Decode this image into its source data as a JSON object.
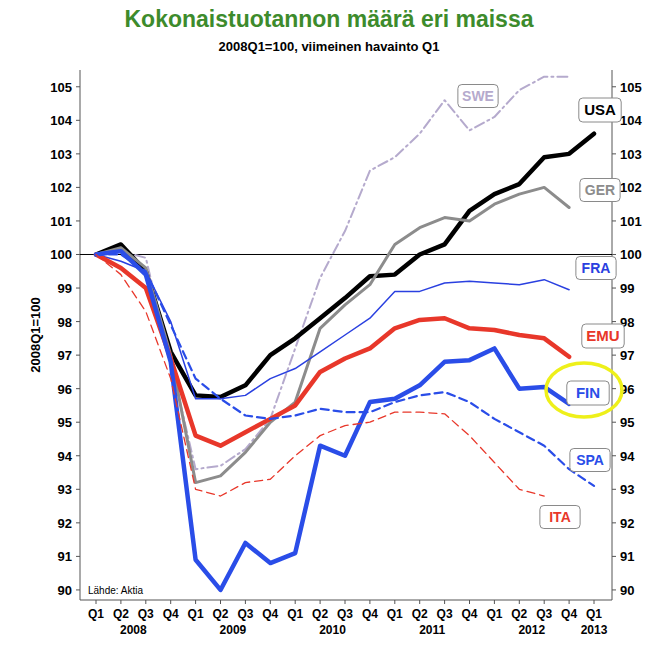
{
  "chart_data": {
    "type": "line",
    "title": "Kokonaistuotannon määrä eri maissa",
    "subtitle": "2008Q1=100, viimeinen havainto Q1",
    "y_label": "2008Q1=100",
    "source": "Lähde: Aktia",
    "categories": [
      "Q1",
      "Q2",
      "Q3",
      "Q4",
      "Q1",
      "Q2",
      "Q3",
      "Q4",
      "Q1",
      "Q2",
      "Q3",
      "Q4",
      "Q1",
      "Q2",
      "Q3",
      "Q4",
      "Q1",
      "Q2",
      "Q3",
      "Q4",
      "Q1"
    ],
    "years": [
      "2008",
      "2009",
      "2010",
      "2011",
      "2012",
      "2013"
    ],
    "ylim": [
      89.7,
      105.5
    ],
    "yticks": [
      90,
      91,
      92,
      93,
      94,
      95,
      96,
      97,
      98,
      99,
      100,
      101,
      102,
      103,
      104,
      105
    ],
    "series": [
      {
        "name": "SWE",
        "color": "#b5aacd",
        "line_style": "dashdot",
        "values": [
          100,
          100.1,
          99.9,
          96.8,
          93.6,
          93.7,
          94.2,
          95.1,
          97.2,
          99.3,
          100.7,
          102.5,
          102.9,
          103.6,
          104.6,
          103.7,
          104.1,
          104.9,
          105.3,
          105.3,
          null
        ]
      },
      {
        "name": "USA",
        "color": "#000000",
        "line_style": "solid",
        "values": [
          100,
          100.3,
          99.5,
          97.1,
          95.8,
          95.75,
          96.1,
          97.0,
          97.5,
          98.1,
          98.7,
          99.35,
          99.4,
          100.0,
          100.3,
          101.3,
          101.8,
          102.1,
          102.9,
          103.0,
          103.6
        ]
      },
      {
        "name": "GER",
        "color": "#8c8c8c",
        "line_style": "solid",
        "values": [
          100,
          100.2,
          99.6,
          97.0,
          93.2,
          93.4,
          94.1,
          95.0,
          95.6,
          97.8,
          98.5,
          99.1,
          100.3,
          100.8,
          101.1,
          101.0,
          101.5,
          101.8,
          102.0,
          101.4,
          null
        ]
      },
      {
        "name": "FRA",
        "color": "#2a40e0",
        "line_style": "solid",
        "values": [
          100,
          99.8,
          99.5,
          98.0,
          95.7,
          95.7,
          95.8,
          96.3,
          96.6,
          97.1,
          97.6,
          98.1,
          98.9,
          98.9,
          99.15,
          99.2,
          99.15,
          99.1,
          99.25,
          98.95,
          null
        ]
      },
      {
        "name": "EMU",
        "color": "#e8372a",
        "line_style": "solid",
        "values": [
          100,
          99.6,
          99.0,
          96.9,
          94.6,
          94.3,
          94.7,
          95.1,
          95.5,
          96.5,
          96.9,
          97.2,
          97.8,
          98.05,
          98.1,
          97.8,
          97.75,
          97.6,
          97.5,
          96.95,
          null
        ]
      },
      {
        "name": "FIN",
        "color": "#2a4de8",
        "line_style": "solid",
        "values": [
          100,
          100.1,
          99.4,
          96.8,
          90.9,
          90.0,
          91.4,
          90.8,
          91.1,
          94.3,
          94.0,
          95.6,
          95.7,
          96.1,
          96.8,
          96.85,
          97.2,
          96.0,
          96.05,
          95.55,
          null
        ]
      },
      {
        "name": "SPA",
        "color": "#2a4de8",
        "line_style": "dashed",
        "values": [
          100,
          100.0,
          99.5,
          97.9,
          96.3,
          95.7,
          95.2,
          95.1,
          95.2,
          95.4,
          95.3,
          95.3,
          95.6,
          95.8,
          95.9,
          95.6,
          95.1,
          94.7,
          94.3,
          93.6,
          93.1
        ]
      },
      {
        "name": "ITA",
        "color": "#e8372a",
        "line_style": "dashed",
        "values": [
          100,
          99.4,
          98.3,
          96.3,
          93.0,
          92.8,
          93.2,
          93.3,
          94.0,
          94.6,
          94.9,
          95.0,
          95.3,
          95.3,
          95.25,
          94.6,
          93.8,
          93.0,
          92.8,
          null,
          null
        ]
      }
    ]
  }
}
